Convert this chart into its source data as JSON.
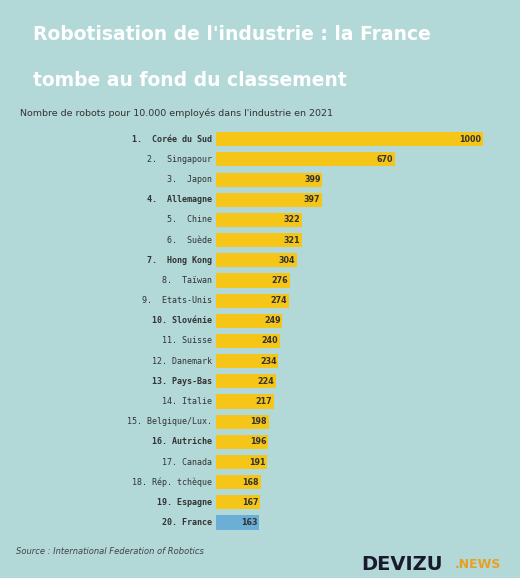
{
  "title_line1": "Robotisation de l'industrie : la France",
  "title_line2": "tombe au fond du classement",
  "subtitle": "Nombre de robots pour 10.000 employés dans l'industrie en 2021",
  "source": "Source : International Federation of Robotics",
  "countries": [
    "1.  Corée du Sud",
    "2.  Singapour",
    "3.  Japon",
    "4.  Allemagne",
    "5.  Chine",
    "6.  Suède",
    "7.  Hong Kong",
    "8.  Taïwan",
    "9.  Etats-Unis",
    "10. Slovénie",
    "11. Suisse",
    "12. Danemark",
    "13. Pays-Bas",
    "14. Italie",
    "15. Belgique/Lux.",
    "16. Autriche",
    "17. Canada",
    "18. Rép. tchèque",
    "19. Espagne",
    "20. France"
  ],
  "values": [
    1000,
    670,
    399,
    397,
    322,
    321,
    304,
    276,
    274,
    249,
    240,
    234,
    224,
    217,
    198,
    196,
    191,
    168,
    167,
    163
  ],
  "bar_color_default": "#F5C518",
  "bar_color_france": "#6BAED6",
  "background_color": "#B2D8D8",
  "title_bg_color": "#2d3250",
  "title_text_color": "#FFFFFF",
  "subtitle_color": "#333333",
  "label_color": "#333333",
  "bold_indices": [
    0,
    3,
    6,
    9,
    12,
    15,
    18,
    19
  ],
  "xlim": [
    0,
    1080
  ]
}
